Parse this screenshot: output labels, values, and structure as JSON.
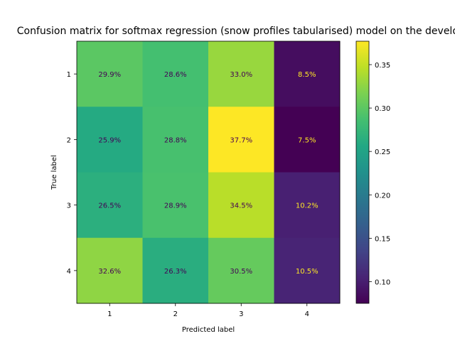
{
  "chart_data": {
    "type": "heatmap",
    "title": "Confusion matrix for softmax regression (snow profiles tabularised) model on the development set",
    "xlabel": "Predicted label",
    "ylabel": "True label",
    "x_categories": [
      "1",
      "2",
      "3",
      "4"
    ],
    "y_categories": [
      "1",
      "2",
      "3",
      "4"
    ],
    "values": [
      [
        0.299,
        0.286,
        0.33,
        0.085
      ],
      [
        0.259,
        0.288,
        0.377,
        0.075
      ],
      [
        0.265,
        0.289,
        0.345,
        0.102
      ],
      [
        0.326,
        0.263,
        0.305,
        0.105
      ]
    ],
    "cell_labels": [
      [
        "29.9%",
        "28.6%",
        "33.0%",
        "8.5%"
      ],
      [
        "25.9%",
        "28.8%",
        "37.7%",
        "7.5%"
      ],
      [
        "26.5%",
        "28.9%",
        "34.5%",
        "10.2%"
      ],
      [
        "32.6%",
        "26.3%",
        "30.5%",
        "10.5%"
      ]
    ],
    "colormap": "viridis",
    "color_range": [
      0.075,
      0.377
    ],
    "colorbar_ticks": [
      "0.10",
      "0.15",
      "0.20",
      "0.25",
      "0.30",
      "0.35"
    ],
    "grid": false
  }
}
